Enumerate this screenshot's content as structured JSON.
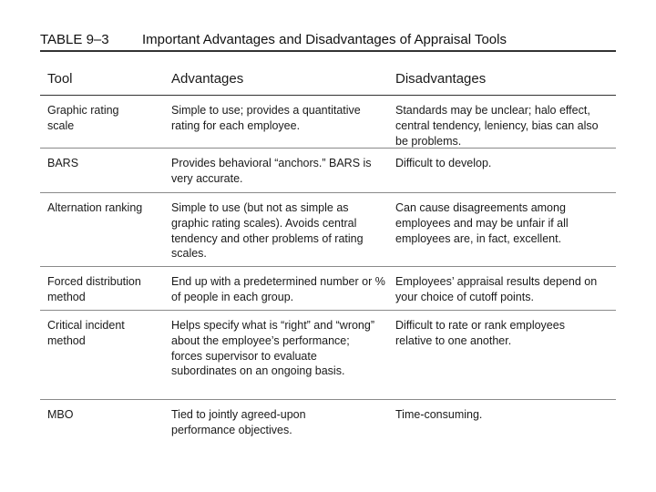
{
  "header": {
    "table_label": "TABLE 9–3",
    "title": "Important Advantages and Disadvantages of Appraisal Tools"
  },
  "table": {
    "columns": [
      "Tool",
      "Advantages",
      "Disadvantages"
    ],
    "rows": [
      {
        "tool": "Graphic rating scale",
        "advantages": "Simple to use; provides a quantitative rating for each employee.",
        "disadvantages": "Standards may be unclear; halo effect, central tendency, leniency, bias can also be problems."
      },
      {
        "tool": "BARS",
        "advantages": "Provides behavioral “anchors.” BARS is very accurate.",
        "disadvantages": "Difficult to develop."
      },
      {
        "tool": "Alternation ranking",
        "advantages": "Simple to use (but not as simple as graphic rating scales). Avoids central tendency and other problems of rating scales.",
        "disadvantages": "Can cause disagreements among employees and may be unfair if all employees are, in fact, excellent."
      },
      {
        "tool": "Forced distribution method",
        "advantages": "End up with a predetermined number or % of people in each group.",
        "disadvantages": "Employees’ appraisal results depend on your choice of cutoff points."
      },
      {
        "tool": "Critical incident method",
        "advantages": "Helps specify what is “right” and “wrong” about the employee’s performance; forces supervisor to evaluate subordinates on an ongoing basis.",
        "disadvantages": "Difficult to rate or rank employees relative to one another."
      },
      {
        "tool": "MBO",
        "advantages": "Tied to jointly agreed-upon performance objectives.",
        "disadvantages": "Time-consuming."
      }
    ]
  }
}
